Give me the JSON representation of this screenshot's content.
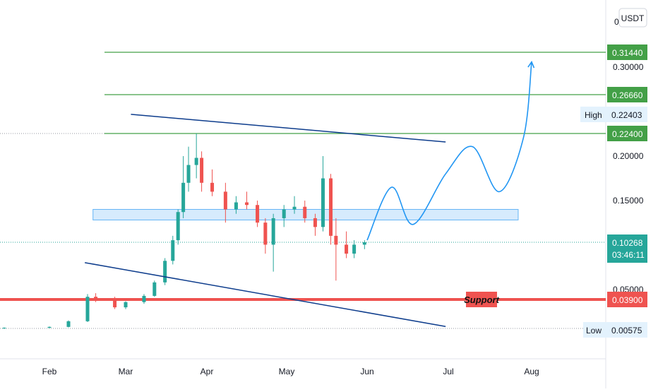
{
  "chart_data": {
    "type": "candlestick",
    "title": "",
    "xlabel": "",
    "ylabel": "",
    "currency": "USDT",
    "x_ticks": [
      "Feb",
      "Mar",
      "Apr",
      "May",
      "Jun",
      "Jul",
      "Aug"
    ],
    "y_ticks": [
      "0.30000",
      "0.20000",
      "0.15000",
      "0.10268",
      "0.05000"
    ],
    "price_labels": [
      {
        "value": "0.31440",
        "color": "#43a047"
      },
      {
        "value": "0.26660",
        "color": "#43a047"
      },
      {
        "value": "0.22400",
        "color": "#43a047"
      },
      {
        "value": "0.10268",
        "color": "#26a69a"
      },
      {
        "value": "0.03900",
        "color": "#ef5350"
      }
    ],
    "countdown": "03:46:11",
    "high": {
      "label": "High",
      "value": "0.22403"
    },
    "low": {
      "label": "Low",
      "value": "0.00575"
    },
    "support_label": "Support",
    "top_tick": "0",
    "candles": [
      {
        "date": "2021-01-22",
        "open": 0.006,
        "high": 0.007,
        "low": 0.005,
        "close": 0.0065
      },
      {
        "date": "2021-02-01",
        "open": 0.0065,
        "high": 0.008,
        "low": 0.006,
        "close": 0.0075
      },
      {
        "date": "2021-02-08",
        "open": 0.0075,
        "high": 0.015,
        "low": 0.007,
        "close": 0.014
      },
      {
        "date": "2021-02-15",
        "open": 0.014,
        "high": 0.045,
        "low": 0.013,
        "close": 0.042
      },
      {
        "date": "2021-02-18",
        "open": 0.042,
        "high": 0.046,
        "low": 0.036,
        "close": 0.038
      },
      {
        "date": "2021-02-25",
        "open": 0.038,
        "high": 0.042,
        "low": 0.028,
        "close": 0.03
      },
      {
        "date": "2021-03-01",
        "open": 0.03,
        "high": 0.037,
        "low": 0.028,
        "close": 0.036
      },
      {
        "date": "2021-03-08",
        "open": 0.036,
        "high": 0.045,
        "low": 0.034,
        "close": 0.043
      },
      {
        "date": "2021-03-12",
        "open": 0.043,
        "high": 0.06,
        "low": 0.042,
        "close": 0.058
      },
      {
        "date": "2021-03-16",
        "open": 0.058,
        "high": 0.085,
        "low": 0.055,
        "close": 0.082
      },
      {
        "date": "2021-03-19",
        "open": 0.082,
        "high": 0.11,
        "low": 0.078,
        "close": 0.105
      },
      {
        "date": "2021-03-21",
        "open": 0.105,
        "high": 0.14,
        "low": 0.1,
        "close": 0.137
      },
      {
        "date": "2021-03-23",
        "open": 0.137,
        "high": 0.2,
        "low": 0.13,
        "close": 0.17
      },
      {
        "date": "2021-03-25",
        "open": 0.17,
        "high": 0.21,
        "low": 0.16,
        "close": 0.19
      },
      {
        "date": "2021-03-28",
        "open": 0.19,
        "high": 0.22403,
        "low": 0.175,
        "close": 0.198
      },
      {
        "date": "2021-03-30",
        "open": 0.198,
        "high": 0.205,
        "low": 0.16,
        "close": 0.17
      },
      {
        "date": "2021-04-03",
        "open": 0.17,
        "high": 0.185,
        "low": 0.155,
        "close": 0.16
      },
      {
        "date": "2021-04-08",
        "open": 0.16,
        "high": 0.17,
        "low": 0.125,
        "close": 0.14
      },
      {
        "date": "2021-04-12",
        "open": 0.14,
        "high": 0.155,
        "low": 0.135,
        "close": 0.148
      },
      {
        "date": "2021-04-16",
        "open": 0.148,
        "high": 0.16,
        "low": 0.14,
        "close": 0.145
      },
      {
        "date": "2021-04-20",
        "open": 0.145,
        "high": 0.15,
        "low": 0.12,
        "close": 0.125
      },
      {
        "date": "2021-04-23",
        "open": 0.125,
        "high": 0.13,
        "low": 0.09,
        "close": 0.1
      },
      {
        "date": "2021-04-26",
        "open": 0.1,
        "high": 0.135,
        "low": 0.07,
        "close": 0.13
      },
      {
        "date": "2021-04-30",
        "open": 0.13,
        "high": 0.145,
        "low": 0.12,
        "close": 0.14
      },
      {
        "date": "2021-05-04",
        "open": 0.14,
        "high": 0.155,
        "low": 0.135,
        "close": 0.143
      },
      {
        "date": "2021-05-08",
        "open": 0.143,
        "high": 0.15,
        "low": 0.125,
        "close": 0.13
      },
      {
        "date": "2021-05-12",
        "open": 0.13,
        "high": 0.135,
        "low": 0.11,
        "close": 0.12
      },
      {
        "date": "2021-05-15",
        "open": 0.12,
        "high": 0.2,
        "low": 0.115,
        "close": 0.175
      },
      {
        "date": "2021-05-18",
        "open": 0.175,
        "high": 0.18,
        "low": 0.1,
        "close": 0.11
      },
      {
        "date": "2021-05-20",
        "open": 0.11,
        "high": 0.13,
        "low": 0.06,
        "close": 0.1
      },
      {
        "date": "2021-05-24",
        "open": 0.1,
        "high": 0.115,
        "low": 0.085,
        "close": 0.09
      },
      {
        "date": "2021-05-27",
        "open": 0.09,
        "high": 0.105,
        "low": 0.085,
        "close": 0.1
      },
      {
        "date": "2021-05-31",
        "open": 0.1,
        "high": 0.105,
        "low": 0.095,
        "close": 0.10268
      }
    ],
    "horizontal_levels": [
      {
        "value": 0.3144,
        "color": "#43a047",
        "style": "solid"
      },
      {
        "value": 0.2666,
        "color": "#43a047",
        "style": "solid"
      },
      {
        "value": 0.224,
        "color": "#43a047",
        "style": "solid"
      },
      {
        "value": 0.039,
        "color": "#ef5350",
        "style": "thick"
      }
    ],
    "trendlines": [
      {
        "from": {
          "date": "2021-03-03",
          "price": 0.245
        },
        "to": {
          "date": "2021-06-30",
          "price": 0.215
        },
        "color": "#0d3c8c"
      },
      {
        "from": {
          "date": "2021-02-14",
          "price": 0.08
        },
        "to": {
          "date": "2021-06-30",
          "price": 0.008
        },
        "color": "#0d3c8c"
      }
    ],
    "zone": {
      "from_date": "2021-02-17",
      "to_date": "2021-07-27",
      "price_top": 0.14,
      "price_bottom": 0.128
    },
    "projection_path": [
      {
        "date": "2021-06-01",
        "price": 0.105
      },
      {
        "date": "2021-06-10",
        "price": 0.165
      },
      {
        "date": "2021-06-18",
        "price": 0.123
      },
      {
        "date": "2021-06-30",
        "price": 0.18
      },
      {
        "date": "2021-07-10",
        "price": 0.21
      },
      {
        "date": "2021-07-20",
        "price": 0.16
      },
      {
        "date": "2021-07-29",
        "price": 0.22
      },
      {
        "date": "2021-08-01",
        "price": 0.305
      }
    ],
    "colors": {
      "up": "#26a69a",
      "down": "#ef5350",
      "resistance": "#43a047",
      "support": "#ef5350",
      "trendline": "#0d3c8c",
      "projection": "#2196f3",
      "zone": "#bbdefb"
    }
  }
}
